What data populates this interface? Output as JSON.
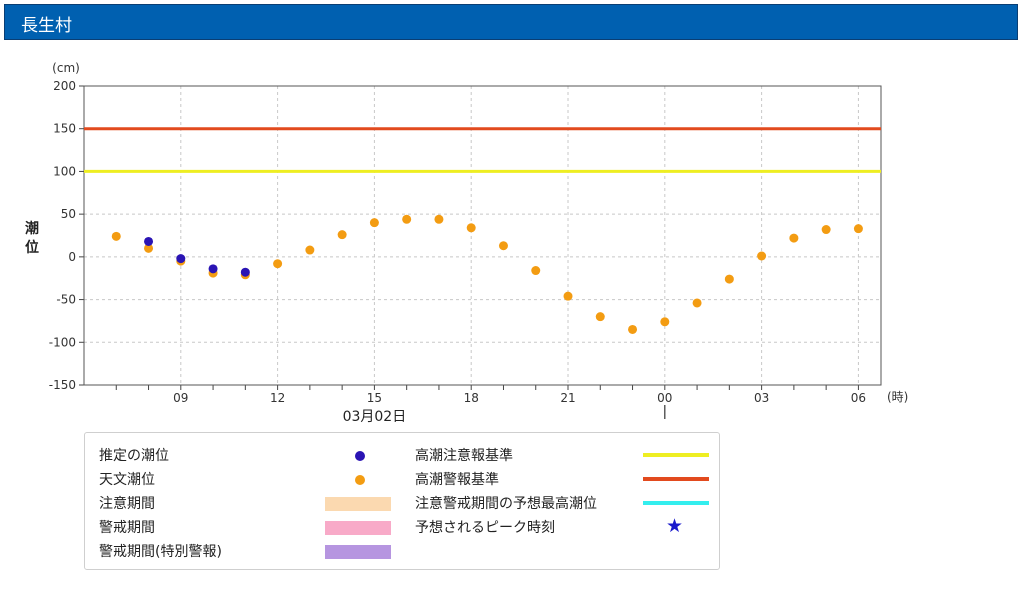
{
  "page": {
    "title": "長生村"
  },
  "colors": {
    "header_bg": "#0060b0",
    "estimated": "#2a14b4",
    "astronomical": "#f39c12",
    "caution_level": "#eeee22",
    "warning_level": "#e24a1e",
    "forecast_peak_line": "#33eeee",
    "caution_period": "#fbd9b0",
    "warning_period": "#f8aac8",
    "special_warning_period": "#b695e0",
    "peak_star": "#1a1acc"
  },
  "chart_data": {
    "type": "scatter",
    "y_unit": "(cm)",
    "ylabel": "潮位",
    "x_unit": "(時)",
    "ylim": [
      -150,
      200
    ],
    "yticks": [
      -150,
      -100,
      -50,
      0,
      50,
      100,
      150,
      200
    ],
    "x_start_hour": 6,
    "x_end_hour": 30.7,
    "xticks": [
      {
        "hour": 9,
        "label": "09"
      },
      {
        "hour": 12,
        "label": "12"
      },
      {
        "hour": 15,
        "label": "15"
      },
      {
        "hour": 18,
        "label": "18"
      },
      {
        "hour": 21,
        "label": "21"
      },
      {
        "hour": 24,
        "label": "00"
      },
      {
        "hour": 27,
        "label": "03"
      },
      {
        "hour": 30,
        "label": "06"
      }
    ],
    "date_label": {
      "hour": 15,
      "label": "03月02日"
    },
    "date_boundary_hour": 24,
    "grid": true,
    "reference_lines": [
      {
        "name": "高潮注意報基準",
        "value": 100
      },
      {
        "name": "高潮警報基準",
        "value": 150
      }
    ],
    "series": [
      {
        "name": "推定の潮位",
        "points": [
          [
            8,
            18
          ],
          [
            9,
            -2
          ],
          [
            10,
            -14
          ],
          [
            11,
            -18
          ]
        ]
      },
      {
        "name": "天文潮位",
        "points": [
          [
            7,
            24
          ],
          [
            8,
            10
          ],
          [
            9,
            -5
          ],
          [
            10,
            -19
          ],
          [
            11,
            -21
          ],
          [
            12,
            -8
          ],
          [
            13,
            8
          ],
          [
            14,
            26
          ],
          [
            15,
            40
          ],
          [
            16,
            44
          ],
          [
            17,
            44
          ],
          [
            18,
            34
          ],
          [
            19,
            13
          ],
          [
            20,
            -16
          ],
          [
            21,
            -46
          ],
          [
            22,
            -70
          ],
          [
            23,
            -85
          ],
          [
            24,
            -76
          ],
          [
            25,
            -54
          ],
          [
            26,
            -26
          ],
          [
            27,
            1
          ],
          [
            28,
            22
          ],
          [
            29,
            32
          ],
          [
            30,
            33
          ]
        ]
      }
    ]
  },
  "legend": {
    "estimated": "推定の潮位",
    "astronomical": "天文潮位",
    "caution_period": "注意期間",
    "warning_period": "警戒期間",
    "special_warning_period": "警戒期間(特別警報)",
    "caution_level": "高潮注意報基準",
    "warning_level": "高潮警報基準",
    "forecast_peak": "注意警戒期間の予想最高潮位",
    "peak_time": "予想されるピーク時刻",
    "peak_symbol": "★"
  }
}
